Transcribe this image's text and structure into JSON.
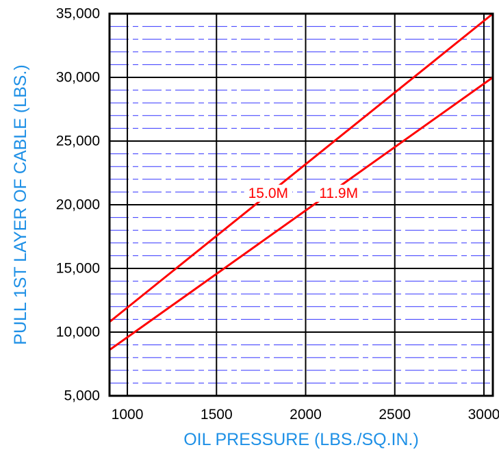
{
  "chart_data": {
    "type": "line",
    "xlabel": "OIL PRESSURE (LBS./SQ.IN.)",
    "ylabel": "PULL 1ST LAYER OF CABLE (LBS.)",
    "xlim": [
      900,
      3050
    ],
    "ylim": [
      5000,
      35000
    ],
    "x_ticks": [
      1000,
      1500,
      2000,
      2500,
      3000
    ],
    "x_tick_labels": [
      "1000",
      "1500",
      "2000",
      "2500",
      "3000"
    ],
    "y_ticks": [
      5000,
      10000,
      15000,
      20000,
      25000,
      30000,
      35000
    ],
    "y_tick_labels": [
      "5,000",
      "10,000",
      "15,000",
      "20,000",
      "25,000",
      "30,000",
      "35,000"
    ],
    "major_grid": {
      "x_step": 500,
      "y_step": 5000,
      "color": "#000000"
    },
    "minor_grid": {
      "y_step": 1000,
      "color": "#3333ff",
      "style": "dash-dot"
    },
    "series": [
      {
        "name": "15.0M",
        "color": "#ff0000",
        "x": [
          900,
          3050
        ],
        "y": [
          10800,
          35000
        ],
        "label_at": [
          1790,
          20900
        ]
      },
      {
        "name": "11.9M",
        "color": "#ff0000",
        "x": [
          900,
          3050
        ],
        "y": [
          8600,
          30000
        ],
        "label_at": [
          2185,
          20900
        ]
      }
    ],
    "colors": {
      "axis_title": "#1e90e6",
      "tick_label": "#000000",
      "frame": "#000000",
      "line": "#ff0000"
    },
    "legend": "none"
  }
}
